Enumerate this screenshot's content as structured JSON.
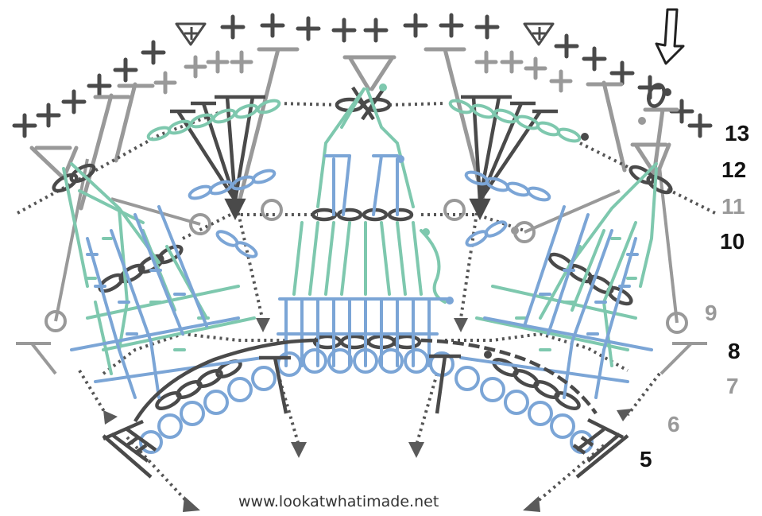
{
  "colors": {
    "dark": "#4a4a4a",
    "gray": "#999999",
    "green": "#7ec8ae",
    "blue": "#7ba5d6",
    "label_dark": "#111111",
    "label_gray": "#999999"
  },
  "row_labels": [
    {
      "text": "13",
      "tone": "dark"
    },
    {
      "text": "12",
      "tone": "dark"
    },
    {
      "text": "11",
      "tone": "gray"
    },
    {
      "text": "10",
      "tone": "dark"
    },
    {
      "text": "9",
      "tone": "gray"
    },
    {
      "text": "8",
      "tone": "dark"
    },
    {
      "text": "7",
      "tone": "gray"
    },
    {
      "text": "6",
      "tone": "gray"
    },
    {
      "text": "5",
      "tone": "dark"
    }
  ],
  "watermark": "www.lookatwhatimade.net",
  "icons": [
    "start-arrow-icon",
    "crochet-symbol-chart"
  ]
}
